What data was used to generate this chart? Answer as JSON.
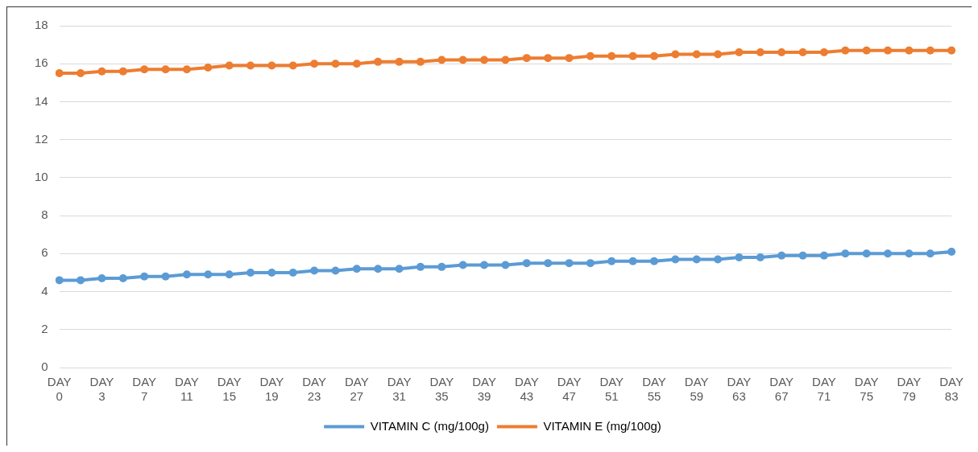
{
  "chart_data": {
    "type": "line",
    "categories": [
      "DAY 0",
      null,
      "DAY 3",
      null,
      "DAY 7",
      null,
      "DAY 11",
      null,
      "DAY 15",
      null,
      "DAY 19",
      null,
      "DAY 23",
      null,
      "DAY 27",
      null,
      "DAY 31",
      null,
      "DAY 35",
      null,
      "DAY 39",
      null,
      "DAY 43",
      null,
      "DAY 47",
      null,
      "DAY 51",
      null,
      "DAY 55",
      null,
      "DAY 59",
      null,
      "DAY 63",
      null,
      "DAY 67",
      null,
      "DAY 71",
      null,
      "DAY 75",
      null,
      "DAY 79",
      null,
      "DAY 83"
    ],
    "series": [
      {
        "name": "VITAMIN C (mg/100g)",
        "color": "#5b9bd5",
        "values": [
          4.6,
          4.6,
          4.7,
          4.7,
          4.8,
          4.8,
          4.9,
          4.9,
          4.9,
          5.0,
          5.0,
          5.0,
          5.1,
          5.1,
          5.2,
          5.2,
          5.2,
          5.3,
          5.3,
          5.4,
          5.4,
          5.4,
          5.5,
          5.5,
          5.5,
          5.5,
          5.6,
          5.6,
          5.6,
          5.7,
          5.7,
          5.7,
          5.8,
          5.8,
          5.9,
          5.9,
          5.9,
          6.0,
          6.0,
          6.0,
          6.0,
          6.0,
          6.1
        ]
      },
      {
        "name": "VITAMIN E (mg/100g)",
        "color": "#ed7d31",
        "values": [
          15.5,
          15.5,
          15.6,
          15.6,
          15.7,
          15.7,
          15.7,
          15.8,
          15.9,
          15.9,
          15.9,
          15.9,
          16.0,
          16.0,
          16.0,
          16.1,
          16.1,
          16.1,
          16.2,
          16.2,
          16.2,
          16.2,
          16.3,
          16.3,
          16.3,
          16.4,
          16.4,
          16.4,
          16.4,
          16.5,
          16.5,
          16.5,
          16.6,
          16.6,
          16.6,
          16.6,
          16.6,
          16.7,
          16.7,
          16.7,
          16.7,
          16.7,
          16.7
        ]
      }
    ],
    "ylim": [
      0,
      18
    ],
    "yticks": [
      0,
      2,
      4,
      6,
      8,
      10,
      12,
      14,
      16,
      18
    ],
    "grid": "y",
    "legend": "bottom",
    "marker": "circle",
    "line_style": "solid"
  }
}
